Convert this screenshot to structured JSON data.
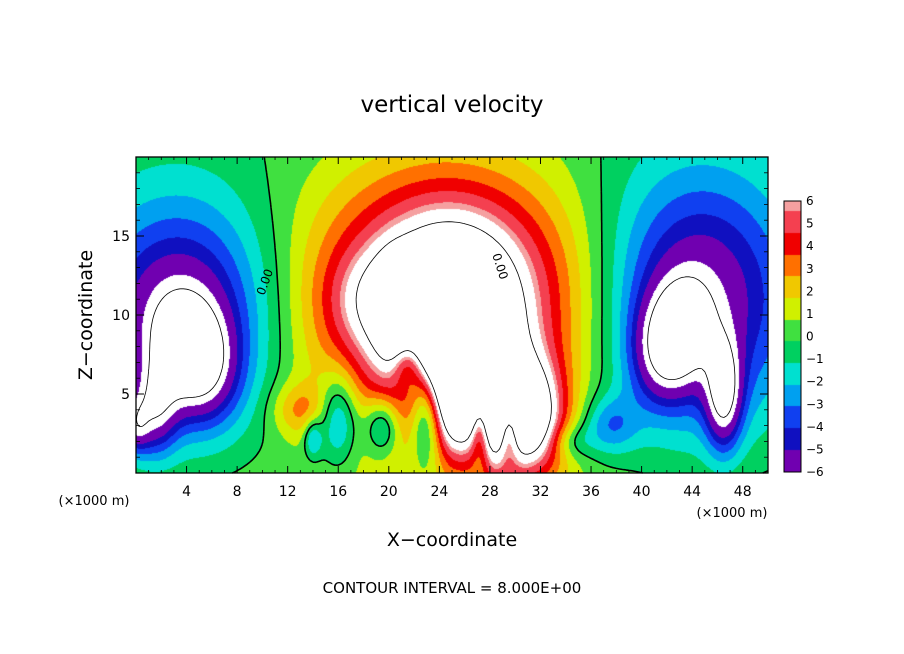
{
  "chart_data": {
    "type": "heatmap",
    "title": "vertical velocity",
    "xlabel": "X−coordinate",
    "ylabel": "Z−coordinate",
    "x_unit_left": "(×1000 m)",
    "x_unit_right": "(×1000 m)",
    "xlim": [
      0,
      50
    ],
    "ylim": [
      0,
      20
    ],
    "x_ticks": [
      4,
      8,
      12,
      16,
      20,
      24,
      28,
      32,
      36,
      40,
      44,
      48
    ],
    "x_tick_labels": [
      "4",
      "8",
      "12",
      "16",
      "20",
      "24",
      "28",
      "32",
      "36",
      "40",
      "44",
      "48"
    ],
    "y_ticks": [
      5,
      10,
      15
    ],
    "y_tick_labels": [
      "5",
      "10",
      "15"
    ],
    "colorbar": {
      "levels": [
        6,
        5,
        4,
        3,
        2,
        1,
        0,
        -1,
        -2,
        -3,
        -4,
        -5,
        -6
      ],
      "labels": [
        "6",
        "5",
        "4",
        "3",
        "2",
        "1",
        "0",
        "−1",
        "−2",
        "−3",
        "−4",
        "−5",
        "−6"
      ],
      "colors": [
        "#f5a0a0",
        "#f44050",
        "#f00000",
        "#ff7000",
        "#f0c800",
        "#d0f000",
        "#40e040",
        "#00d060",
        "#00e0d0",
        "#00a0f0",
        "#1040f0",
        "#1010c0",
        "#7000b0"
      ]
    },
    "contour_labels": [
      "0.00",
      "0.00"
    ],
    "contour_interval_text": "CONTOUR INTERVAL = 8.000E+00"
  }
}
